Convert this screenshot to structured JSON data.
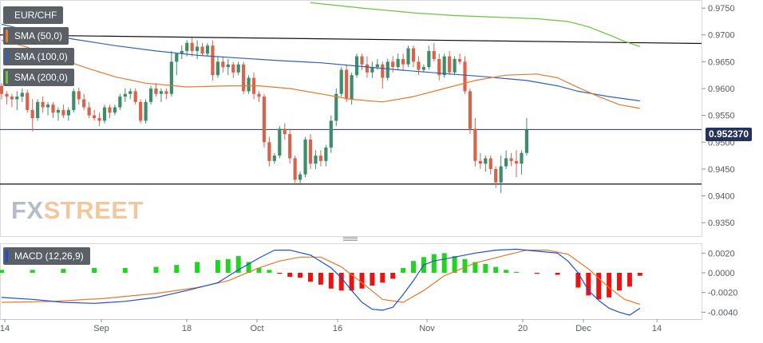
{
  "instrument": "EUR/CHF",
  "legends": {
    "sma50": "SMA (50,0)",
    "sma100": "SMA (100,0)",
    "sma200": "SMA (200,0)",
    "macd": "MACD (12,26,9)"
  },
  "watermark": {
    "part1": "FX",
    "part2": "STREET"
  },
  "last_price_label": "0.952370",
  "colors": {
    "up": "#3d8c6c",
    "down": "#d9634a",
    "sma50": "#e8782a",
    "sma100": "#2f62b5",
    "sma200": "#6ac43a",
    "macd_line": "#1a4fd8",
    "signal_line": "#e8782a",
    "hist_pos": "#22d422",
    "hist_neg": "#ee1111",
    "last_price_bg": "#25325a"
  },
  "chart_data": [
    {
      "type": "candlestick",
      "title": "EUR/CHF",
      "x_tick_labels": [
        "14",
        "Sep",
        "18",
        "Oct",
        "16",
        "Nov",
        "20",
        "Dec",
        "14"
      ],
      "y_ticks": [
        0.935,
        0.94,
        0.945,
        0.95,
        0.955,
        0.96,
        0.965,
        0.97,
        0.975
      ],
      "y_tick_labels": [
        "0.9350",
        "0.9400",
        "0.9450",
        "0.9500",
        "0.9550",
        "0.9600",
        "0.9650",
        "0.9700",
        "0.9750"
      ],
      "ylim": [
        0.9325,
        0.9765
      ],
      "last_price": 0.95237,
      "horizontal_lines": [
        0.95237,
        0.9422
      ],
      "trendline": {
        "from": [
          0,
          0.97
        ],
        "to": [
          125,
          0.9684
        ]
      },
      "candles": [
        [
          0.9605,
          0.961,
          0.958,
          0.959
        ],
        [
          0.959,
          0.9595,
          0.957,
          0.9585
        ],
        [
          0.9585,
          0.959,
          0.9565,
          0.958
        ],
        [
          0.958,
          0.9595,
          0.956,
          0.9585
        ],
        [
          0.9585,
          0.96,
          0.9575,
          0.9592
        ],
        [
          0.9592,
          0.9598,
          0.9555,
          0.956
        ],
        [
          0.956,
          0.958,
          0.952,
          0.9545
        ],
        [
          0.9545,
          0.958,
          0.954,
          0.9575
        ],
        [
          0.9575,
          0.9585,
          0.9555,
          0.9565
        ],
        [
          0.9565,
          0.9575,
          0.955,
          0.957
        ],
        [
          0.957,
          0.9575,
          0.9545,
          0.9555
        ],
        [
          0.9555,
          0.9565,
          0.954,
          0.956
        ],
        [
          0.956,
          0.957,
          0.9545,
          0.955
        ],
        [
          0.955,
          0.9565,
          0.954,
          0.956
        ],
        [
          0.956,
          0.96,
          0.9555,
          0.9595
        ],
        [
          0.9595,
          0.9602,
          0.957,
          0.958
        ],
        [
          0.958,
          0.959,
          0.956,
          0.9565
        ],
        [
          0.9565,
          0.9575,
          0.9545,
          0.955
        ],
        [
          0.955,
          0.956,
          0.954,
          0.9545
        ],
        [
          0.9545,
          0.9555,
          0.953,
          0.954
        ],
        [
          0.954,
          0.957,
          0.9535,
          0.9565
        ],
        [
          0.9565,
          0.957,
          0.9545,
          0.9555
        ],
        [
          0.9555,
          0.957,
          0.955,
          0.9565
        ],
        [
          0.9565,
          0.959,
          0.956,
          0.9585
        ],
        [
          0.9585,
          0.96,
          0.9575,
          0.959
        ],
        [
          0.959,
          0.96,
          0.958,
          0.9595
        ],
        [
          0.9595,
          0.96,
          0.957,
          0.9575
        ],
        [
          0.9575,
          0.958,
          0.9535,
          0.954
        ],
        [
          0.954,
          0.958,
          0.9535,
          0.9575
        ],
        [
          0.9575,
          0.9605,
          0.957,
          0.96
        ],
        [
          0.96,
          0.961,
          0.9585,
          0.959
        ],
        [
          0.959,
          0.96,
          0.9575,
          0.9595
        ],
        [
          0.9595,
          0.96,
          0.958,
          0.959
        ],
        [
          0.959,
          0.967,
          0.9585,
          0.965
        ],
        [
          0.965,
          0.9665,
          0.9625,
          0.9665
        ],
        [
          0.9665,
          0.968,
          0.9655,
          0.967
        ],
        [
          0.967,
          0.969,
          0.966,
          0.9685
        ],
        [
          0.9685,
          0.9695,
          0.966,
          0.967
        ],
        [
          0.967,
          0.969,
          0.9655,
          0.9678
        ],
        [
          0.9678,
          0.9685,
          0.966,
          0.9665
        ],
        [
          0.9665,
          0.9685,
          0.966,
          0.968
        ],
        [
          0.968,
          0.969,
          0.9615,
          0.9625
        ],
        [
          0.9625,
          0.966,
          0.962,
          0.965
        ],
        [
          0.965,
          0.966,
          0.963,
          0.964
        ],
        [
          0.964,
          0.9655,
          0.9625,
          0.9645
        ],
        [
          0.9645,
          0.965,
          0.962,
          0.963
        ],
        [
          0.963,
          0.965,
          0.9625,
          0.9645
        ],
        [
          0.9645,
          0.965,
          0.959,
          0.9595
        ],
        [
          0.9595,
          0.9625,
          0.959,
          0.962
        ],
        [
          0.962,
          0.963,
          0.958,
          0.959
        ],
        [
          0.959,
          0.9595,
          0.9575,
          0.9585
        ],
        [
          0.9585,
          0.959,
          0.949,
          0.95
        ],
        [
          0.95,
          0.951,
          0.9455,
          0.9465
        ],
        [
          0.9465,
          0.948,
          0.946,
          0.9475
        ],
        [
          0.9475,
          0.953,
          0.947,
          0.9525
        ],
        [
          0.9525,
          0.9535,
          0.9505,
          0.9515
        ],
        [
          0.9515,
          0.9525,
          0.946,
          0.947
        ],
        [
          0.947,
          0.9475,
          0.942,
          0.943
        ],
        [
          0.943,
          0.9445,
          0.942,
          0.944
        ],
        [
          0.944,
          0.951,
          0.9435,
          0.9505
        ],
        [
          0.9505,
          0.9515,
          0.945,
          0.946
        ],
        [
          0.946,
          0.9485,
          0.945,
          0.9475
        ],
        [
          0.9475,
          0.9485,
          0.9455,
          0.9465
        ],
        [
          0.9465,
          0.9495,
          0.9455,
          0.949
        ],
        [
          0.949,
          0.955,
          0.948,
          0.954
        ],
        [
          0.954,
          0.96,
          0.953,
          0.959
        ],
        [
          0.959,
          0.964,
          0.9585,
          0.9635
        ],
        [
          0.9635,
          0.9645,
          0.9575,
          0.958
        ],
        [
          0.958,
          0.963,
          0.957,
          0.9625
        ],
        [
          0.9625,
          0.9665,
          0.962,
          0.966
        ],
        [
          0.966,
          0.9665,
          0.9635,
          0.9645
        ],
        [
          0.9645,
          0.966,
          0.962,
          0.963
        ],
        [
          0.963,
          0.965,
          0.962,
          0.964
        ],
        [
          0.964,
          0.9655,
          0.9635,
          0.9645
        ],
        [
          0.9645,
          0.965,
          0.96,
          0.962
        ],
        [
          0.962,
          0.9655,
          0.9615,
          0.965
        ],
        [
          0.965,
          0.966,
          0.963,
          0.964
        ],
        [
          0.964,
          0.9665,
          0.9635,
          0.9655
        ],
        [
          0.9655,
          0.9665,
          0.9635,
          0.9645
        ],
        [
          0.9645,
          0.968,
          0.964,
          0.9675
        ],
        [
          0.9675,
          0.968,
          0.964,
          0.965
        ],
        [
          0.965,
          0.966,
          0.9625,
          0.9635
        ],
        [
          0.9635,
          0.9645,
          0.963,
          0.964
        ],
        [
          0.964,
          0.968,
          0.9635,
          0.967
        ],
        [
          0.967,
          0.9685,
          0.965,
          0.9655
        ],
        [
          0.9655,
          0.9665,
          0.9615,
          0.9625
        ],
        [
          0.9625,
          0.9665,
          0.962,
          0.966
        ],
        [
          0.966,
          0.967,
          0.9625,
          0.963
        ],
        [
          0.963,
          0.966,
          0.9625,
          0.9655
        ],
        [
          0.9655,
          0.9665,
          0.9645,
          0.965
        ],
        [
          0.965,
          0.966,
          0.959,
          0.9595
        ],
        [
          0.9595,
          0.96,
          0.9515,
          0.9525
        ],
        [
          0.9525,
          0.9545,
          0.9455,
          0.9465
        ],
        [
          0.9465,
          0.948,
          0.945,
          0.946
        ],
        [
          0.946,
          0.9475,
          0.9445,
          0.947
        ],
        [
          0.947,
          0.9475,
          0.944,
          0.945
        ],
        [
          0.945,
          0.9455,
          0.9415,
          0.9425
        ],
        [
          0.9425,
          0.9475,
          0.9405,
          0.9455
        ],
        [
          0.9455,
          0.9485,
          0.945,
          0.947
        ],
        [
          0.947,
          0.948,
          0.9455,
          0.9465
        ],
        [
          0.9465,
          0.9485,
          0.9435,
          0.946
        ],
        [
          0.946,
          0.9485,
          0.944,
          0.948
        ],
        [
          0.948,
          0.9545,
          0.9475,
          0.9523
        ]
      ],
      "sma50": [
        [
          0,
          0.969
        ],
        [
          4,
          0.968
        ],
        [
          10,
          0.966
        ],
        [
          16,
          0.964
        ],
        [
          22,
          0.9622
        ],
        [
          28,
          0.961
        ],
        [
          36,
          0.9603
        ],
        [
          44,
          0.9605
        ],
        [
          50,
          0.9605
        ],
        [
          56,
          0.96
        ],
        [
          62,
          0.959
        ],
        [
          68,
          0.958
        ],
        [
          74,
          0.9575
        ],
        [
          80,
          0.9585
        ],
        [
          86,
          0.96
        ],
        [
          92,
          0.9615
        ],
        [
          98,
          0.9625
        ],
        [
          104,
          0.9627
        ],
        [
          108,
          0.962
        ],
        [
          112,
          0.9602
        ],
        [
          116,
          0.9585
        ],
        [
          120,
          0.957
        ],
        [
          124,
          0.9563
        ]
      ],
      "sma100": [
        [
          0,
          0.972
        ],
        [
          6,
          0.9706
        ],
        [
          14,
          0.9692
        ],
        [
          22,
          0.968
        ],
        [
          30,
          0.967
        ],
        [
          38,
          0.9662
        ],
        [
          46,
          0.9657
        ],
        [
          54,
          0.9652
        ],
        [
          62,
          0.9648
        ],
        [
          70,
          0.9641
        ],
        [
          78,
          0.9634
        ],
        [
          86,
          0.9628
        ],
        [
          94,
          0.9622
        ],
        [
          102,
          0.9615
        ],
        [
          108,
          0.9605
        ],
        [
          112,
          0.9595
        ],
        [
          118,
          0.9585
        ],
        [
          124,
          0.9577
        ]
      ],
      "sma200": [
        [
          60,
          0.976
        ],
        [
          70,
          0.975
        ],
        [
          80,
          0.9741
        ],
        [
          88,
          0.9736
        ],
        [
          96,
          0.9733
        ],
        [
          104,
          0.973
        ],
        [
          110,
          0.9725
        ],
        [
          114,
          0.9715
        ],
        [
          118,
          0.97
        ],
        [
          121,
          0.9688
        ],
        [
          124,
          0.9678
        ]
      ]
    },
    {
      "type": "line",
      "title": "MACD (12,26,9)",
      "y_ticks": [
        -0.004,
        -0.002,
        0.0,
        0.002
      ],
      "y_tick_labels": [
        "-0.0040",
        "-0.0020",
        "0.0000",
        "0.0020"
      ],
      "ylim": [
        -0.0047,
        0.003
      ],
      "macd": [
        [
          0,
          -0.0025
        ],
        [
          6,
          -0.0027
        ],
        [
          12,
          -0.003
        ],
        [
          18,
          -0.0031
        ],
        [
          24,
          -0.0029
        ],
        [
          30,
          -0.0025
        ],
        [
          36,
          -0.0018
        ],
        [
          42,
          -0.001
        ],
        [
          46,
          0.0003
        ],
        [
          50,
          0.0015
        ],
        [
          53,
          0.0023
        ],
        [
          56,
          0.0023
        ],
        [
          60,
          0.0018
        ],
        [
          64,
          0.0005
        ],
        [
          66,
          -0.0005
        ],
        [
          68,
          -0.0018
        ],
        [
          70,
          -0.003
        ],
        [
          72,
          -0.0037
        ],
        [
          74,
          -0.0038
        ],
        [
          76,
          -0.0035
        ],
        [
          78,
          -0.0022
        ],
        [
          80,
          -0.0008
        ],
        [
          82,
          0.0008
        ],
        [
          84,
          0.0012
        ],
        [
          88,
          0.0016
        ],
        [
          92,
          0.002
        ],
        [
          96,
          0.0023
        ],
        [
          100,
          0.0024
        ],
        [
          104,
          0.0022
        ],
        [
          108,
          0.002
        ],
        [
          110,
          0.0012
        ],
        [
          112,
          0.0
        ],
        [
          114,
          -0.0018
        ],
        [
          116,
          -0.0028
        ],
        [
          118,
          -0.0036
        ],
        [
          120,
          -0.004
        ],
        [
          122,
          -0.0043
        ],
        [
          124,
          -0.0036
        ]
      ],
      "signal": [
        [
          0,
          -0.003
        ],
        [
          10,
          -0.0029
        ],
        [
          20,
          -0.0026
        ],
        [
          30,
          -0.0021
        ],
        [
          38,
          -0.0015
        ],
        [
          44,
          -0.0008
        ],
        [
          50,
          0.0005
        ],
        [
          54,
          0.0012
        ],
        [
          58,
          0.0016
        ],
        [
          62,
          0.0016
        ],
        [
          66,
          0.0006
        ],
        [
          70,
          -0.001
        ],
        [
          74,
          -0.0027
        ],
        [
          78,
          -0.003
        ],
        [
          82,
          -0.0018
        ],
        [
          86,
          -0.0003
        ],
        [
          92,
          0.001
        ],
        [
          98,
          0.0018
        ],
        [
          102,
          0.0023
        ],
        [
          106,
          0.0023
        ],
        [
          110,
          0.0019
        ],
        [
          114,
          0.0004
        ],
        [
          118,
          -0.0015
        ],
        [
          121,
          -0.0027
        ],
        [
          124,
          -0.0032
        ]
      ],
      "histogram": [
        [
          0,
          0.0003
        ],
        [
          6,
          0.0003
        ],
        [
          12,
          0.0004
        ],
        [
          18,
          0.0005
        ],
        [
          24,
          0.0005
        ],
        [
          30,
          0.0006
        ],
        [
          34,
          0.0008
        ],
        [
          38,
          0.0011
        ],
        [
          42,
          0.0013
        ],
        [
          44,
          0.0014
        ],
        [
          46,
          0.0017
        ],
        [
          48,
          0.0011
        ],
        [
          50,
          0.0005
        ],
        [
          52,
          0.0003
        ],
        [
          54,
          -0.0001
        ],
        [
          56,
          -0.0004
        ],
        [
          58,
          -0.0005
        ],
        [
          60,
          -0.0009
        ],
        [
          62,
          -0.0012
        ],
        [
          64,
          -0.0016
        ],
        [
          66,
          -0.0018
        ],
        [
          68,
          -0.0018
        ],
        [
          70,
          -0.0016
        ],
        [
          72,
          -0.0013
        ],
        [
          74,
          -0.001
        ],
        [
          76,
          -0.0006
        ],
        [
          78,
          0.0005
        ],
        [
          80,
          0.0012
        ],
        [
          82,
          0.0016
        ],
        [
          84,
          0.0019
        ],
        [
          86,
          0.002
        ],
        [
          88,
          0.0017
        ],
        [
          90,
          0.0014
        ],
        [
          92,
          0.0011
        ],
        [
          94,
          0.0009
        ],
        [
          96,
          0.0006
        ],
        [
          98,
          0.0003
        ],
        [
          100,
          0.0001
        ],
        [
          104,
          -0.0001
        ],
        [
          108,
          -0.0002
        ],
        [
          112,
          -0.0015
        ],
        [
          114,
          -0.0023
        ],
        [
          116,
          -0.0027
        ],
        [
          118,
          -0.0025
        ],
        [
          120,
          -0.0018
        ],
        [
          122,
          -0.0014
        ],
        [
          124,
          -0.0003
        ]
      ]
    }
  ]
}
